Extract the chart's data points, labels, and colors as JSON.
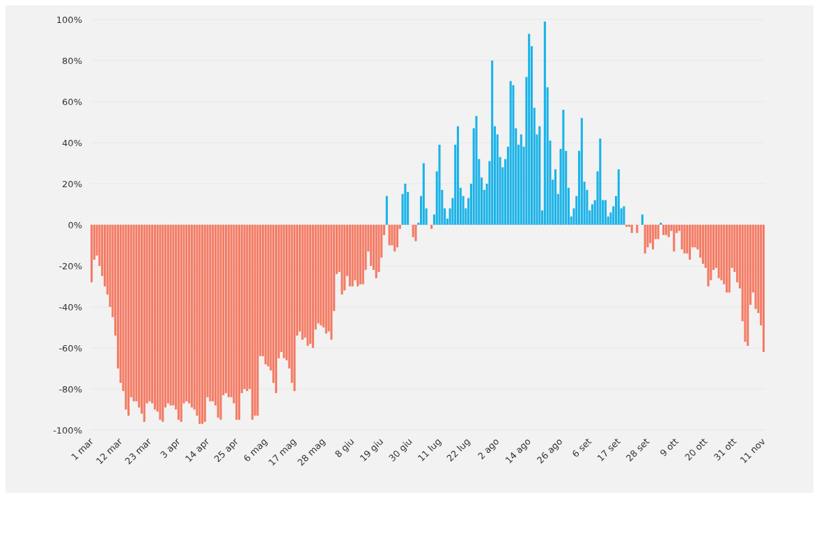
{
  "chart_data": {
    "type": "bar",
    "grid": "y",
    "ylim": [
      -100,
      100
    ],
    "yticks": [
      {
        "value": -100,
        "label": "-100%"
      },
      {
        "value": -80,
        "label": "-80%"
      },
      {
        "value": -60,
        "label": "-60%"
      },
      {
        "value": -40,
        "label": "-40%"
      },
      {
        "value": -20,
        "label": "-20%"
      },
      {
        "value": 0,
        "label": "0%"
      },
      {
        "value": 20,
        "label": "20%"
      },
      {
        "value": 40,
        "label": "40%"
      },
      {
        "value": 60,
        "label": "60%"
      },
      {
        "value": 80,
        "label": "80%"
      },
      {
        "value": 100,
        "label": "100%"
      }
    ],
    "categories": [
      "1 mar",
      null,
      null,
      null,
      null,
      null,
      null,
      null,
      null,
      null,
      null,
      "12 mar",
      null,
      null,
      null,
      null,
      null,
      null,
      null,
      null,
      null,
      null,
      "23 mar",
      null,
      null,
      null,
      null,
      null,
      null,
      null,
      null,
      null,
      null,
      "3 apr",
      null,
      null,
      null,
      null,
      null,
      null,
      null,
      null,
      null,
      null,
      "14 apr",
      null,
      null,
      null,
      null,
      null,
      null,
      null,
      null,
      null,
      null,
      "25 apr",
      null,
      null,
      null,
      null,
      null,
      null,
      null,
      null,
      null,
      null,
      "6 mag",
      null,
      null,
      null,
      null,
      null,
      null,
      null,
      null,
      null,
      null,
      "17 mag",
      null,
      null,
      null,
      null,
      null,
      null,
      null,
      null,
      null,
      null,
      "28 mag",
      null,
      null,
      null,
      null,
      null,
      null,
      null,
      null,
      null,
      null,
      "8 giu",
      null,
      null,
      null,
      null,
      null,
      null,
      null,
      null,
      null,
      null,
      "19 giu",
      null,
      null,
      null,
      null,
      null,
      null,
      null,
      null,
      null,
      null,
      "30 giu",
      null,
      null,
      null,
      null,
      null,
      null,
      null,
      null,
      null,
      null,
      "11 lug",
      null,
      null,
      null,
      null,
      null,
      null,
      null,
      null,
      null,
      null,
      "22 lug",
      null,
      null,
      null,
      null,
      null,
      null,
      null,
      null,
      null,
      null,
      "2 ago",
      null,
      null,
      null,
      null,
      null,
      null,
      null,
      null,
      null,
      null,
      null,
      "14 ago",
      null,
      null,
      null,
      null,
      null,
      null,
      null,
      null,
      null,
      null,
      null,
      "26 ago",
      null,
      null,
      null,
      null,
      null,
      null,
      null,
      null,
      null,
      null,
      "6 set",
      null,
      null,
      null,
      null,
      null,
      null,
      null,
      null,
      null,
      null,
      "17 set",
      null,
      null,
      null,
      null,
      null,
      null,
      null,
      null,
      null,
      null,
      "28 set",
      null,
      null,
      null,
      null,
      null,
      null,
      null,
      null,
      null,
      null,
      "9 ott",
      null,
      null,
      null,
      null,
      null,
      null,
      null,
      null,
      null,
      null,
      "20 ott",
      null,
      null,
      null,
      null,
      null,
      null,
      null,
      null,
      null,
      null,
      "31 ott",
      null,
      null,
      null,
      null,
      null,
      null,
      null,
      null,
      null,
      null,
      "11 nov"
    ],
    "values": [
      -28,
      -17,
      -15,
      -20,
      -25,
      -30,
      -34,
      -40,
      -45,
      -54,
      -70,
      -77,
      -81,
      -90,
      -93,
      -84,
      -86,
      -86,
      -89,
      -92,
      -96,
      -87,
      -86,
      -87,
      -90,
      -91,
      -95,
      -96,
      -89,
      -87,
      -88,
      -88,
      -90,
      -95,
      -96,
      -87,
      -86,
      -87,
      -89,
      -90,
      -93,
      -97,
      -97,
      -96,
      -84,
      -86,
      -86,
      -88,
      -94,
      -95,
      -83,
      -82,
      -84,
      -84,
      -87,
      -95,
      -95,
      -82,
      -80,
      -81,
      -80,
      -95,
      -93,
      -93,
      -64,
      -64,
      -68,
      -69,
      -71,
      -77,
      -82,
      -65,
      -62,
      -65,
      -66,
      -70,
      -77,
      -81,
      -54,
      -52,
      -56,
      -55,
      -59,
      -58,
      -60,
      -51,
      -48,
      -49,
      -50,
      -53,
      -52,
      -56,
      -42,
      -24,
      -23,
      -34,
      -32,
      -25,
      -30,
      -30,
      -27,
      -30,
      -29,
      -29,
      -22,
      -13,
      -20,
      -22,
      -26,
      -23,
      -16,
      -5,
      14,
      -10,
      -10,
      -13,
      -11,
      -2,
      15,
      20,
      16,
      0,
      -6,
      -8,
      1,
      14,
      30,
      8,
      0,
      -2,
      5,
      26,
      39,
      17,
      8,
      3,
      8,
      13,
      39,
      48,
      18,
      14,
      8,
      13,
      20,
      47,
      53,
      32,
      23,
      17,
      20,
      31,
      80,
      48,
      44,
      33,
      28,
      32,
      38,
      70,
      68,
      47,
      39,
      44,
      38,
      72,
      93,
      87,
      57,
      44,
      48,
      7,
      99,
      67,
      41,
      22,
      27,
      15,
      37,
      56,
      36,
      18,
      4,
      8,
      14,
      36,
      52,
      21,
      17,
      7,
      10,
      12,
      26,
      42,
      12,
      12,
      4,
      6,
      9,
      14,
      27,
      8,
      9,
      -1,
      -1,
      -4,
      0,
      -4,
      0,
      5,
      -14,
      -11,
      -9,
      -12,
      -7,
      -7,
      1,
      -5,
      -5,
      -6,
      -3,
      -13,
      -4,
      -3,
      -12,
      -14,
      -14,
      -17,
      -11,
      -11,
      -12,
      -16,
      -19,
      -21,
      -30,
      -27,
      -22,
      -21,
      -26,
      -27,
      -29,
      -33,
      -33,
      -21,
      -23,
      -28,
      -31,
      -47,
      -57,
      -59,
      -39,
      -33,
      -41,
      -43,
      -49,
      -62
    ],
    "colors": [
      "#f47b64",
      "#f47b64",
      "#f47b64",
      "#f47b64",
      "#f47b64",
      "#f47b64",
      "#f47b64",
      "#f47b64",
      "#f47b64",
      "#f47b64",
      "#f47b64",
      "#f47b64",
      "#f47b64",
      "#f47b64",
      "#f47b64",
      "#f47b64",
      "#f47b64",
      "#f47b64",
      "#f47b64",
      "#f47b64",
      "#f47b64",
      "#f47b64",
      "#f47b64",
      "#f47b64",
      "#f47b64",
      "#f47b64",
      "#f47b64",
      "#f47b64",
      "#f47b64",
      "#f47b64",
      "#f47b64",
      "#f47b64",
      "#f47b64",
      "#f47b64",
      "#f47b64",
      "#f47b64",
      "#f47b64",
      "#f47b64",
      "#f47b64",
      "#f47b64",
      "#f47b64",
      "#f47b64",
      "#f47b64",
      "#f47b64",
      "#f47b64",
      "#f47b64",
      "#f47b64",
      "#f47b64",
      "#f47b64",
      "#f47b64",
      "#f47b64",
      "#f47b64",
      "#f47b64",
      "#f47b64",
      "#f47b64",
      "#f47b64",
      "#f47b64",
      "#f47b64",
      "#f47b64",
      "#f47b64",
      "#f47b64",
      "#f47b64",
      "#f47b64",
      "#f47b64",
      "#f47b64",
      "#f47b64",
      "#f47b64",
      "#f47b64",
      "#f47b64",
      "#f47b64",
      "#f47b64",
      "#f47b64",
      "#f47b64",
      "#f47b64",
      "#f47b64",
      "#f47b64",
      "#f47b64",
      "#f47b64",
      "#f47b64",
      "#f47b64",
      "#f47b64",
      "#f47b64",
      "#f47b64",
      "#f47b64",
      "#f47b64",
      "#f47b64",
      "#f47b64",
      "#f47b64",
      "#f47b64",
      "#f47b64",
      "#f47b64",
      "#f47b64",
      "#f47b64",
      "#f47b64",
      "#f47b64",
      "#f47b64",
      "#f47b64",
      "#f47b64",
      "#f47b64",
      "#f47b64",
      "#f47b64",
      "#f47b64",
      "#f47b64",
      "#f47b64",
      "#f47b64",
      "#f47b64",
      "#f47b64",
      "#f47b64",
      "#f47b64",
      "#f47b64",
      "#f47b64",
      "#f47b64",
      "#1bb3e8",
      "#f47b64",
      "#f47b64",
      "#f47b64",
      "#f47b64",
      "#f47b64",
      "#1bb3e8",
      "#1bb3e8",
      "#1bb3e8",
      "#1bb3e8",
      "#f47b64",
      "#f47b64",
      "#1bb3e8",
      "#1bb3e8",
      "#1bb3e8",
      "#1bb3e8",
      "#1bb3e8",
      "#f47b64",
      "#1bb3e8",
      "#1bb3e8",
      "#1bb3e8",
      "#1bb3e8",
      "#1bb3e8",
      "#1bb3e8",
      "#1bb3e8",
      "#1bb3e8",
      "#1bb3e8",
      "#1bb3e8",
      "#1bb3e8",
      "#1bb3e8",
      "#1bb3e8",
      "#1bb3e8",
      "#1bb3e8",
      "#1bb3e8",
      "#1bb3e8",
      "#1bb3e8",
      "#1bb3e8",
      "#1bb3e8",
      "#1bb3e8",
      "#1bb3e8",
      "#1bb3e8",
      "#1bb3e8",
      "#1bb3e8",
      "#1bb3e8",
      "#1bb3e8",
      "#1bb3e8",
      "#1bb3e8",
      "#1bb3e8",
      "#1bb3e8",
      "#1bb3e8",
      "#1bb3e8",
      "#1bb3e8",
      "#1bb3e8",
      "#1bb3e8",
      "#1bb3e8",
      "#1bb3e8",
      "#1bb3e8",
      "#1bb3e8",
      "#1bb3e8",
      "#1bb3e8",
      "#1bb3e8",
      "#1bb3e8",
      "#1bb3e8",
      "#1bb3e8",
      "#1bb3e8",
      "#1bb3e8",
      "#1bb3e8",
      "#1bb3e8",
      "#1bb3e8",
      "#1bb3e8",
      "#1bb3e8",
      "#1bb3e8",
      "#1bb3e8",
      "#1bb3e8",
      "#1bb3e8",
      "#1bb3e8",
      "#1bb3e8",
      "#1bb3e8",
      "#1bb3e8",
      "#1bb3e8",
      "#1bb3e8",
      "#1bb3e8",
      "#1bb3e8",
      "#1bb3e8",
      "#1bb3e8",
      "#1bb3e8",
      "#1bb3e8",
      "#1bb3e8",
      "#1bb3e8",
      "#1bb3e8",
      "#1bb3e8",
      "#f47b64",
      "#f47b64",
      "#f47b64",
      "#f47b64",
      "#f47b64",
      "#f47b64",
      "#1bb3e8",
      "#f47b64",
      "#f47b64",
      "#f47b64",
      "#f47b64",
      "#f47b64",
      "#f47b64",
      "#1bb3e8",
      "#f47b64",
      "#f47b64",
      "#f47b64",
      "#f47b64",
      "#f47b64",
      "#f47b64",
      "#f47b64",
      "#f47b64",
      "#f47b64",
      "#f47b64",
      "#f47b64",
      "#f47b64",
      "#f47b64",
      "#f47b64",
      "#f47b64",
      "#f47b64",
      "#f47b64",
      "#f47b64",
      "#f47b64",
      "#f47b64",
      "#f47b64",
      "#f47b64",
      "#f47b64",
      "#f47b64",
      "#f47b64",
      "#f47b64",
      "#f47b64",
      "#f47b64",
      "#f47b64",
      "#f47b64",
      "#f47b64",
      "#f47b64",
      "#f47b64",
      "#f47b64",
      "#f47b64",
      "#f47b64",
      "#f47b64",
      "#f47b64",
      "#f47b64"
    ]
  }
}
